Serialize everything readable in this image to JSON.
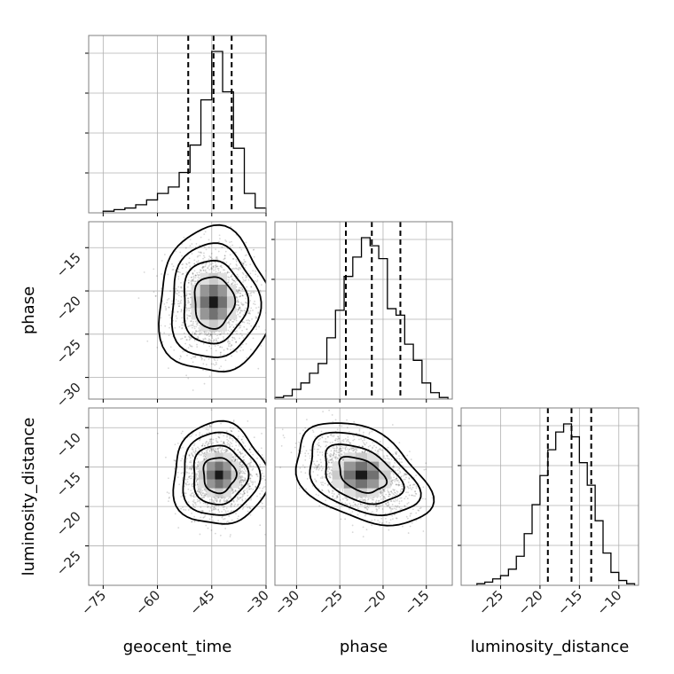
{
  "chart_data": {
    "type": "corner",
    "parameters": [
      "geocent_time",
      "phase",
      "luminosity_distance"
    ],
    "axis_labels": {
      "x": [
        "geocent_time",
        "phase",
        "luminosity_distance"
      ],
      "y": [
        "phase",
        "luminosity_distance"
      ]
    },
    "ranges": {
      "geocent_time": [
        -79,
        -30
      ],
      "phase": [
        -32.5,
        -12.0
      ],
      "luminosity_distance": [
        -30,
        -7.5
      ]
    },
    "ticks": {
      "geocent_time": {
        "values": [
          -75,
          -60,
          -45,
          -30
        ],
        "labels": [
          "−75",
          "−60",
          "−45",
          "−30"
        ]
      },
      "phase": {
        "values": [
          -30,
          -25,
          -20,
          -15
        ],
        "labels": [
          "−30",
          "−25",
          "−20",
          "−15"
        ]
      },
      "luminosity_distance": {
        "values": [
          -25,
          -20,
          -15,
          -10
        ],
        "labels": [
          "−25",
          "−20",
          "−15",
          "−10"
        ]
      }
    },
    "grid": true,
    "quantiles": {
      "geocent_time": [
        -51.5,
        -44.5,
        -39.5
      ],
      "phase": [
        -24.3,
        -21.3,
        -18.0
      ],
      "luminosity_distance": [
        -19.0,
        -16.0,
        -13.5
      ]
    },
    "histograms": {
      "geocent_time": {
        "bin_edges": [
          -75,
          -72,
          -69,
          -66,
          -63,
          -60,
          -57,
          -54,
          -51,
          -48,
          -45,
          -42,
          -39,
          -36,
          -33,
          -30
        ],
        "counts": [
          1,
          2,
          3,
          5,
          8,
          12,
          16,
          25,
          42,
          70,
          100,
          75,
          40,
          12,
          3
        ]
      },
      "phase": {
        "bin_edges": [
          -32.5,
          -31.5,
          -30.5,
          -29.5,
          -28.5,
          -27.5,
          -26.5,
          -25.5,
          -24.5,
          -23.5,
          -22.5,
          -21.5,
          -20.5,
          -19.5,
          -18.5,
          -17.5,
          -16.5,
          -15.5,
          -14.5,
          -13.5,
          -12.5
        ],
        "counts": [
          1,
          2,
          6,
          10,
          16,
          22,
          38,
          55,
          76,
          88,
          100,
          95,
          87,
          56,
          52,
          34,
          24,
          10,
          4,
          1
        ]
      },
      "luminosity_distance": {
        "bin_edges": [
          -28.0,
          -27.0,
          -26.0,
          -25.0,
          -24.0,
          -23.0,
          -22.0,
          -21.0,
          -20.0,
          -19.0,
          -18.0,
          -17.0,
          -16.0,
          -15.0,
          -14.0,
          -13.0,
          -12.0,
          -11.0,
          -10.0,
          -9.0,
          -8.0
        ],
        "counts": [
          1,
          2,
          4,
          6,
          10,
          18,
          32,
          50,
          68,
          84,
          95,
          100,
          92,
          76,
          62,
          40,
          20,
          8,
          3,
          1
        ]
      }
    },
    "pairs": [
      {
        "x": "geocent_time",
        "y": "phase",
        "center": [
          -44.5,
          -21.3
        ],
        "spread": [
          5.5,
          3.0
        ],
        "correlation": 0.0,
        "contour_levels": [
          1.0,
          1.6,
          2.2,
          2.8
        ]
      },
      {
        "x": "geocent_time",
        "y": "luminosity_distance",
        "center": [
          -43.0,
          -16.0
        ],
        "spread": [
          5.0,
          2.5
        ],
        "correlation": 0.0,
        "contour_levels": [
          0.9,
          1.5,
          2.1,
          2.6
        ]
      },
      {
        "x": "phase",
        "y": "luminosity_distance",
        "center": [
          -22.5,
          -16.0
        ],
        "spread": [
          3.0,
          2.5
        ],
        "correlation": -0.4,
        "contour_levels": [
          0.9,
          1.5,
          2.1,
          2.6
        ]
      }
    ]
  }
}
